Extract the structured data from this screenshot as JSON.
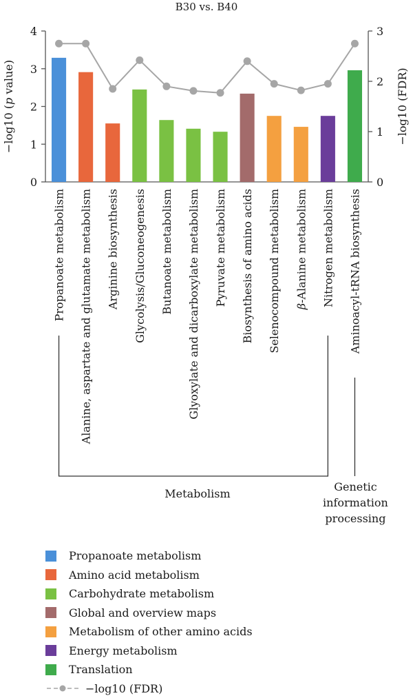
{
  "chart_data": {
    "type": "bar",
    "title": "B30 vs. B40",
    "ylabel_left_prefix": "−log10 (",
    "ylabel_left_italic": "p",
    "ylabel_left_suffix": " value)",
    "ylabel_right": "−log10 (FDR)",
    "ylim_left": [
      0,
      4
    ],
    "yticks_left": [
      0,
      1,
      2,
      3,
      4
    ],
    "ylim_right": [
      0,
      3
    ],
    "yticks_right": [
      0,
      1,
      2,
      3
    ],
    "categories": [
      "Propanoate metabolism",
      "Alanine, aspartate and glutamate metabolism",
      "Arginine biosynthesis",
      "Glycolysis/Gluconeogenesis",
      "Butanoate metabolism",
      "Glyoxylate and dicarboxylate metabolism",
      "Pyruvate metabolism",
      "Biosynthesis of amino acids",
      "Selenocompound metabolism",
      "β-Alanine metabolism",
      "Nitrogen metabolism",
      "Aminoacyl-tRNA biosynthesis"
    ],
    "values": [
      3.29,
      2.91,
      1.55,
      2.45,
      1.64,
      1.41,
      1.33,
      2.34,
      1.75,
      1.46,
      1.75,
      2.96
    ],
    "bar_groups": [
      0,
      1,
      1,
      2,
      2,
      2,
      2,
      3,
      4,
      4,
      5,
      6
    ],
    "fdr": [
      2.75,
      2.75,
      1.85,
      2.42,
      1.9,
      1.81,
      1.77,
      2.4,
      1.95,
      1.82,
      1.95,
      2.75
    ],
    "groups": [
      {
        "name": "Propanoate metabolism",
        "color": "#4a90d9"
      },
      {
        "name": "Amino acid metabolism",
        "color": "#e8673c"
      },
      {
        "name": "Carbohydrate metabolism",
        "color": "#7ac143"
      },
      {
        "name": "Global and overview maps",
        "color": "#a36b6b"
      },
      {
        "name": "Metabolism of other amino acids",
        "color": "#f4a040"
      },
      {
        "name": "Energy metabolism",
        "color": "#6a3d9a"
      },
      {
        "name": "Translation",
        "color": "#3fab4c"
      }
    ],
    "fdr_series_name": "−log10 (FDR)",
    "fdr_color": "#a6a6a6",
    "categories_brackets": [
      {
        "label_lines": [
          "Metabolism"
        ],
        "from": 0,
        "to": 10
      },
      {
        "label_lines": [
          "Genetic",
          "information",
          "processing"
        ],
        "from": 11,
        "to": 11
      }
    ],
    "grid": false
  }
}
